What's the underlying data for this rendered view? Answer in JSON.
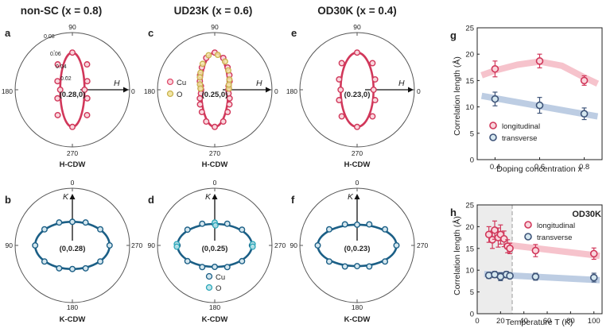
{
  "colors": {
    "h_main": "#d1375a",
    "h_band": "#f6c3cc",
    "k_main": "#1b5f86",
    "k_band": "#bdcde3",
    "trans_mk": "#3d5378",
    "cu_edge": "#e04a6a",
    "cu_fill": "#f9d6dd",
    "o_edge": "#c9b24e",
    "o_fill": "#f2e6a6",
    "k_cu_fill": "#d5e7ef",
    "k_o_edge": "#2aa6b8",
    "k_o_fill": "#bfe6ec",
    "shade": "#ececec"
  },
  "columns": [
    {
      "id": "nonsc",
      "title": "non-SC (x = 0.8)"
    },
    {
      "id": "ud23k",
      "title": "UD23K (x = 0.6)"
    },
    {
      "id": "od30k",
      "title": "OD30K (x = 0.4)"
    }
  ],
  "chart_data": [
    {
      "panel": "a",
      "type": "polar",
      "caption": "H-CDW",
      "center_label": "(0.28,0)",
      "angles_deg": [
        90,
        0,
        270,
        180
      ],
      "angle_labels": [
        "90",
        "0",
        "270",
        "180"
      ],
      "radial_ticks": [
        "0.02",
        "0.04",
        "0.06",
        "0.08"
      ],
      "radial_values": [
        0.02,
        0.04,
        0.06,
        0.08
      ],
      "axis_arrow": "H",
      "arrow_dir": "right",
      "ellipse": {
        "semi_h": 0.017,
        "semi_v": 0.052
      },
      "points": [
        {
          "deg": 0,
          "r": 0.017
        },
        {
          "deg": 30,
          "r": 0.024
        },
        {
          "deg": 60,
          "r": 0.041
        },
        {
          "deg": 90,
          "r": 0.052
        },
        {
          "deg": 120,
          "r": 0.041
        },
        {
          "deg": 150,
          "r": 0.024
        },
        {
          "deg": 180,
          "r": 0.017
        },
        {
          "deg": 210,
          "r": 0.024
        },
        {
          "deg": 240,
          "r": 0.041
        },
        {
          "deg": 270,
          "r": 0.052
        },
        {
          "deg": 300,
          "r": 0.041
        },
        {
          "deg": 330,
          "r": 0.024
        }
      ],
      "species": [
        "Cu"
      ]
    },
    {
      "panel": "c",
      "type": "polar",
      "caption": "H-CDW",
      "center_label": "(0.25,0)",
      "angle_labels": [
        "90",
        "0",
        "270",
        "180"
      ],
      "axis_arrow": "H",
      "arrow_dir": "right",
      "ellipse": {
        "semi_h": 0.019,
        "semi_v": 0.052
      },
      "points": [
        {
          "deg": 0,
          "r": 0.019
        },
        {
          "deg": 15,
          "r": 0.02
        },
        {
          "deg": 30,
          "r": 0.024
        },
        {
          "deg": 45,
          "r": 0.029
        },
        {
          "deg": 60,
          "r": 0.036
        },
        {
          "deg": 75,
          "r": 0.046
        },
        {
          "deg": 90,
          "r": 0.052
        },
        {
          "deg": 105,
          "r": 0.046
        },
        {
          "deg": 120,
          "r": 0.036
        },
        {
          "deg": 135,
          "r": 0.029
        },
        {
          "deg": 150,
          "r": 0.024
        },
        {
          "deg": 165,
          "r": 0.02
        },
        {
          "deg": 180,
          "r": 0.019
        },
        {
          "deg": 195,
          "r": 0.02
        },
        {
          "deg": 210,
          "r": 0.024
        },
        {
          "deg": 225,
          "r": 0.029
        },
        {
          "deg": 240,
          "r": 0.036
        },
        {
          "deg": 255,
          "r": 0.046
        },
        {
          "deg": 270,
          "r": 0.052
        },
        {
          "deg": 285,
          "r": 0.046
        },
        {
          "deg": 300,
          "r": 0.036
        },
        {
          "deg": 315,
          "r": 0.029
        },
        {
          "deg": 330,
          "r": 0.024
        },
        {
          "deg": 345,
          "r": 0.02
        }
      ],
      "o_points": [
        {
          "deg": 5,
          "r": 0.02
        },
        {
          "deg": 20,
          "r": 0.021
        },
        {
          "deg": 35,
          "r": 0.025
        },
        {
          "deg": 55,
          "r": 0.033
        },
        {
          "deg": 70,
          "r": 0.042
        },
        {
          "deg": 85,
          "r": 0.049
        },
        {
          "deg": 100,
          "r": 0.049
        },
        {
          "deg": 115,
          "r": 0.04
        },
        {
          "deg": 130,
          "r": 0.031
        },
        {
          "deg": 140,
          "r": 0.027
        },
        {
          "deg": 160,
          "r": 0.022
        },
        {
          "deg": 175,
          "r": 0.02
        }
      ],
      "legend": [
        "Cu",
        "O"
      ]
    },
    {
      "panel": "e",
      "type": "polar",
      "caption": "H-CDW",
      "center_label": "(0.23,0)",
      "angle_labels": [
        "90",
        "0",
        "270",
        "180"
      ],
      "axis_arrow": "H",
      "arrow_dir": "right",
      "ellipse": {
        "semi_h": 0.023,
        "semi_v": 0.052
      },
      "points": [
        {
          "deg": 0,
          "r": 0.023
        },
        {
          "deg": 30,
          "r": 0.029
        },
        {
          "deg": 60,
          "r": 0.043
        },
        {
          "deg": 90,
          "r": 0.052
        },
        {
          "deg": 120,
          "r": 0.043
        },
        {
          "deg": 150,
          "r": 0.029
        },
        {
          "deg": 180,
          "r": 0.023
        },
        {
          "deg": 210,
          "r": 0.029
        },
        {
          "deg": 240,
          "r": 0.043
        },
        {
          "deg": 270,
          "r": 0.052
        },
        {
          "deg": 300,
          "r": 0.043
        },
        {
          "deg": 330,
          "r": 0.029
        }
      ]
    },
    {
      "panel": "b",
      "type": "polar",
      "caption": "K-CDW",
      "center_label": "(0,0.28)",
      "angle_labels": [
        "0",
        "270",
        "180",
        "90"
      ],
      "axis_arrow": "K",
      "arrow_dir": "up",
      "ellipse": {
        "semi_h": 0.052,
        "semi_v": 0.033
      },
      "points": [
        {
          "deg": 0,
          "r": 0.052
        },
        {
          "deg": 30,
          "r": 0.045
        },
        {
          "deg": 60,
          "r": 0.037
        },
        {
          "deg": 90,
          "r": 0.033
        },
        {
          "deg": 120,
          "r": 0.037
        },
        {
          "deg": 150,
          "r": 0.045
        },
        {
          "deg": 180,
          "r": 0.052
        },
        {
          "deg": 210,
          "r": 0.045
        },
        {
          "deg": 240,
          "r": 0.037
        },
        {
          "deg": 270,
          "r": 0.033
        },
        {
          "deg": 300,
          "r": 0.037
        },
        {
          "deg": 330,
          "r": 0.045
        }
      ]
    },
    {
      "panel": "d",
      "type": "polar",
      "caption": "K-CDW",
      "center_label": "(0,0.25)",
      "angle_labels": [
        "0",
        "270",
        "180",
        "90"
      ],
      "axis_arrow": "K",
      "arrow_dir": "up",
      "ellipse": {
        "semi_h": 0.052,
        "semi_v": 0.03
      },
      "points": [
        {
          "deg": 0,
          "r": 0.052
        },
        {
          "deg": 30,
          "r": 0.044
        },
        {
          "deg": 60,
          "r": 0.035
        },
        {
          "deg": 90,
          "r": 0.03
        },
        {
          "deg": 120,
          "r": 0.035
        },
        {
          "deg": 150,
          "r": 0.044
        },
        {
          "deg": 180,
          "r": 0.052
        },
        {
          "deg": 210,
          "r": 0.044
        },
        {
          "deg": 240,
          "r": 0.035
        },
        {
          "deg": 270,
          "r": 0.03
        },
        {
          "deg": 300,
          "r": 0.035
        },
        {
          "deg": 330,
          "r": 0.044
        }
      ],
      "o_points": [
        {
          "deg": 2,
          "r": 0.053
        },
        {
          "deg": -2,
          "r": 0.053
        },
        {
          "deg": 178,
          "r": 0.053
        },
        {
          "deg": 182,
          "r": 0.053
        },
        {
          "deg": 90,
          "r": 0.032
        },
        {
          "deg": 88,
          "r": 0.028
        }
      ],
      "legend": [
        "Cu",
        "O"
      ]
    },
    {
      "panel": "f",
      "type": "polar",
      "caption": "K-CDW",
      "center_label": "(0,0.23)",
      "angle_labels": [
        "0",
        "270",
        "180",
        "90"
      ],
      "axis_arrow": "K",
      "arrow_dir": "up",
      "ellipse": {
        "semi_h": 0.055,
        "semi_v": 0.029
      },
      "points": [
        {
          "deg": 0,
          "r": 0.055
        },
        {
          "deg": 30,
          "r": 0.045
        },
        {
          "deg": 60,
          "r": 0.034
        },
        {
          "deg": 90,
          "r": 0.029
        },
        {
          "deg": 120,
          "r": 0.034
        },
        {
          "deg": 150,
          "r": 0.045
        },
        {
          "deg": 180,
          "r": 0.055
        },
        {
          "deg": 210,
          "r": 0.045
        },
        {
          "deg": 240,
          "r": 0.034
        },
        {
          "deg": 270,
          "r": 0.029
        },
        {
          "deg": 300,
          "r": 0.034
        },
        {
          "deg": 330,
          "r": 0.045
        }
      ]
    },
    {
      "panel": "g",
      "type": "scatter",
      "xlabel": "Doping concentration x",
      "ylabel": "Correlation length (Å)",
      "xlim": [
        0.32,
        0.88
      ],
      "ylim": [
        0,
        25
      ],
      "xticks": [
        0.4,
        0.6,
        0.8
      ],
      "yticks": [
        0,
        5,
        10,
        15,
        20,
        25
      ],
      "series": [
        {
          "name": "longitudinal",
          "x": [
            0.4,
            0.6,
            0.8
          ],
          "y": [
            17.2,
            18.7,
            15.0
          ],
          "err": [
            1.5,
            1.3,
            0.9
          ],
          "band_x": [
            0.34,
            0.4,
            0.5,
            0.6,
            0.7,
            0.8,
            0.86
          ],
          "band_y": [
            16.0,
            16.9,
            18.0,
            18.6,
            17.8,
            15.6,
            14.4
          ]
        },
        {
          "name": "transverse",
          "x": [
            0.4,
            0.6,
            0.8
          ],
          "y": [
            11.5,
            10.3,
            8.7
          ],
          "err": [
            1.3,
            1.5,
            1.1
          ],
          "band_x": [
            0.34,
            0.86
          ],
          "band_y": [
            12.1,
            8.2
          ]
        }
      ]
    },
    {
      "panel": "h",
      "type": "scatter",
      "annotation": "OD30K",
      "xlabel": "Temperature T (K)",
      "ylabel": "Correlation length (Å)",
      "xlim": [
        0,
        107
      ],
      "ylim": [
        0,
        25
      ],
      "xticks": [
        0,
        20,
        40,
        60,
        80,
        100
      ],
      "yticks": [
        0,
        5,
        10,
        15,
        20,
        25
      ],
      "shade_x": [
        0,
        30
      ],
      "series": [
        {
          "name": "longitudinal",
          "x": [
            10,
            13,
            15,
            18,
            20,
            23,
            26,
            28,
            50,
            100
          ],
          "y": [
            18.2,
            17.0,
            19.2,
            17.5,
            18.2,
            17.2,
            15.5,
            15.0,
            14.5,
            13.8
          ],
          "err": [
            1.8,
            2.0,
            2.1,
            2.2,
            2.2,
            1.8,
            1.5,
            1.2,
            1.4,
            1.3
          ],
          "band_x": [
            26,
            105
          ],
          "band_y": [
            15.8,
            13.3
          ]
        },
        {
          "name": "transverse",
          "x": [
            10,
            15,
            20,
            25,
            28,
            50,
            100
          ],
          "y": [
            8.8,
            9.0,
            8.5,
            9.0,
            8.7,
            8.5,
            8.3
          ],
          "err": [
            0.7,
            0.7,
            0.9,
            0.7,
            0.6,
            0.8,
            1.0
          ],
          "band_x": [
            6,
            105
          ],
          "band_y": [
            9.1,
            7.7
          ]
        }
      ]
    }
  ]
}
